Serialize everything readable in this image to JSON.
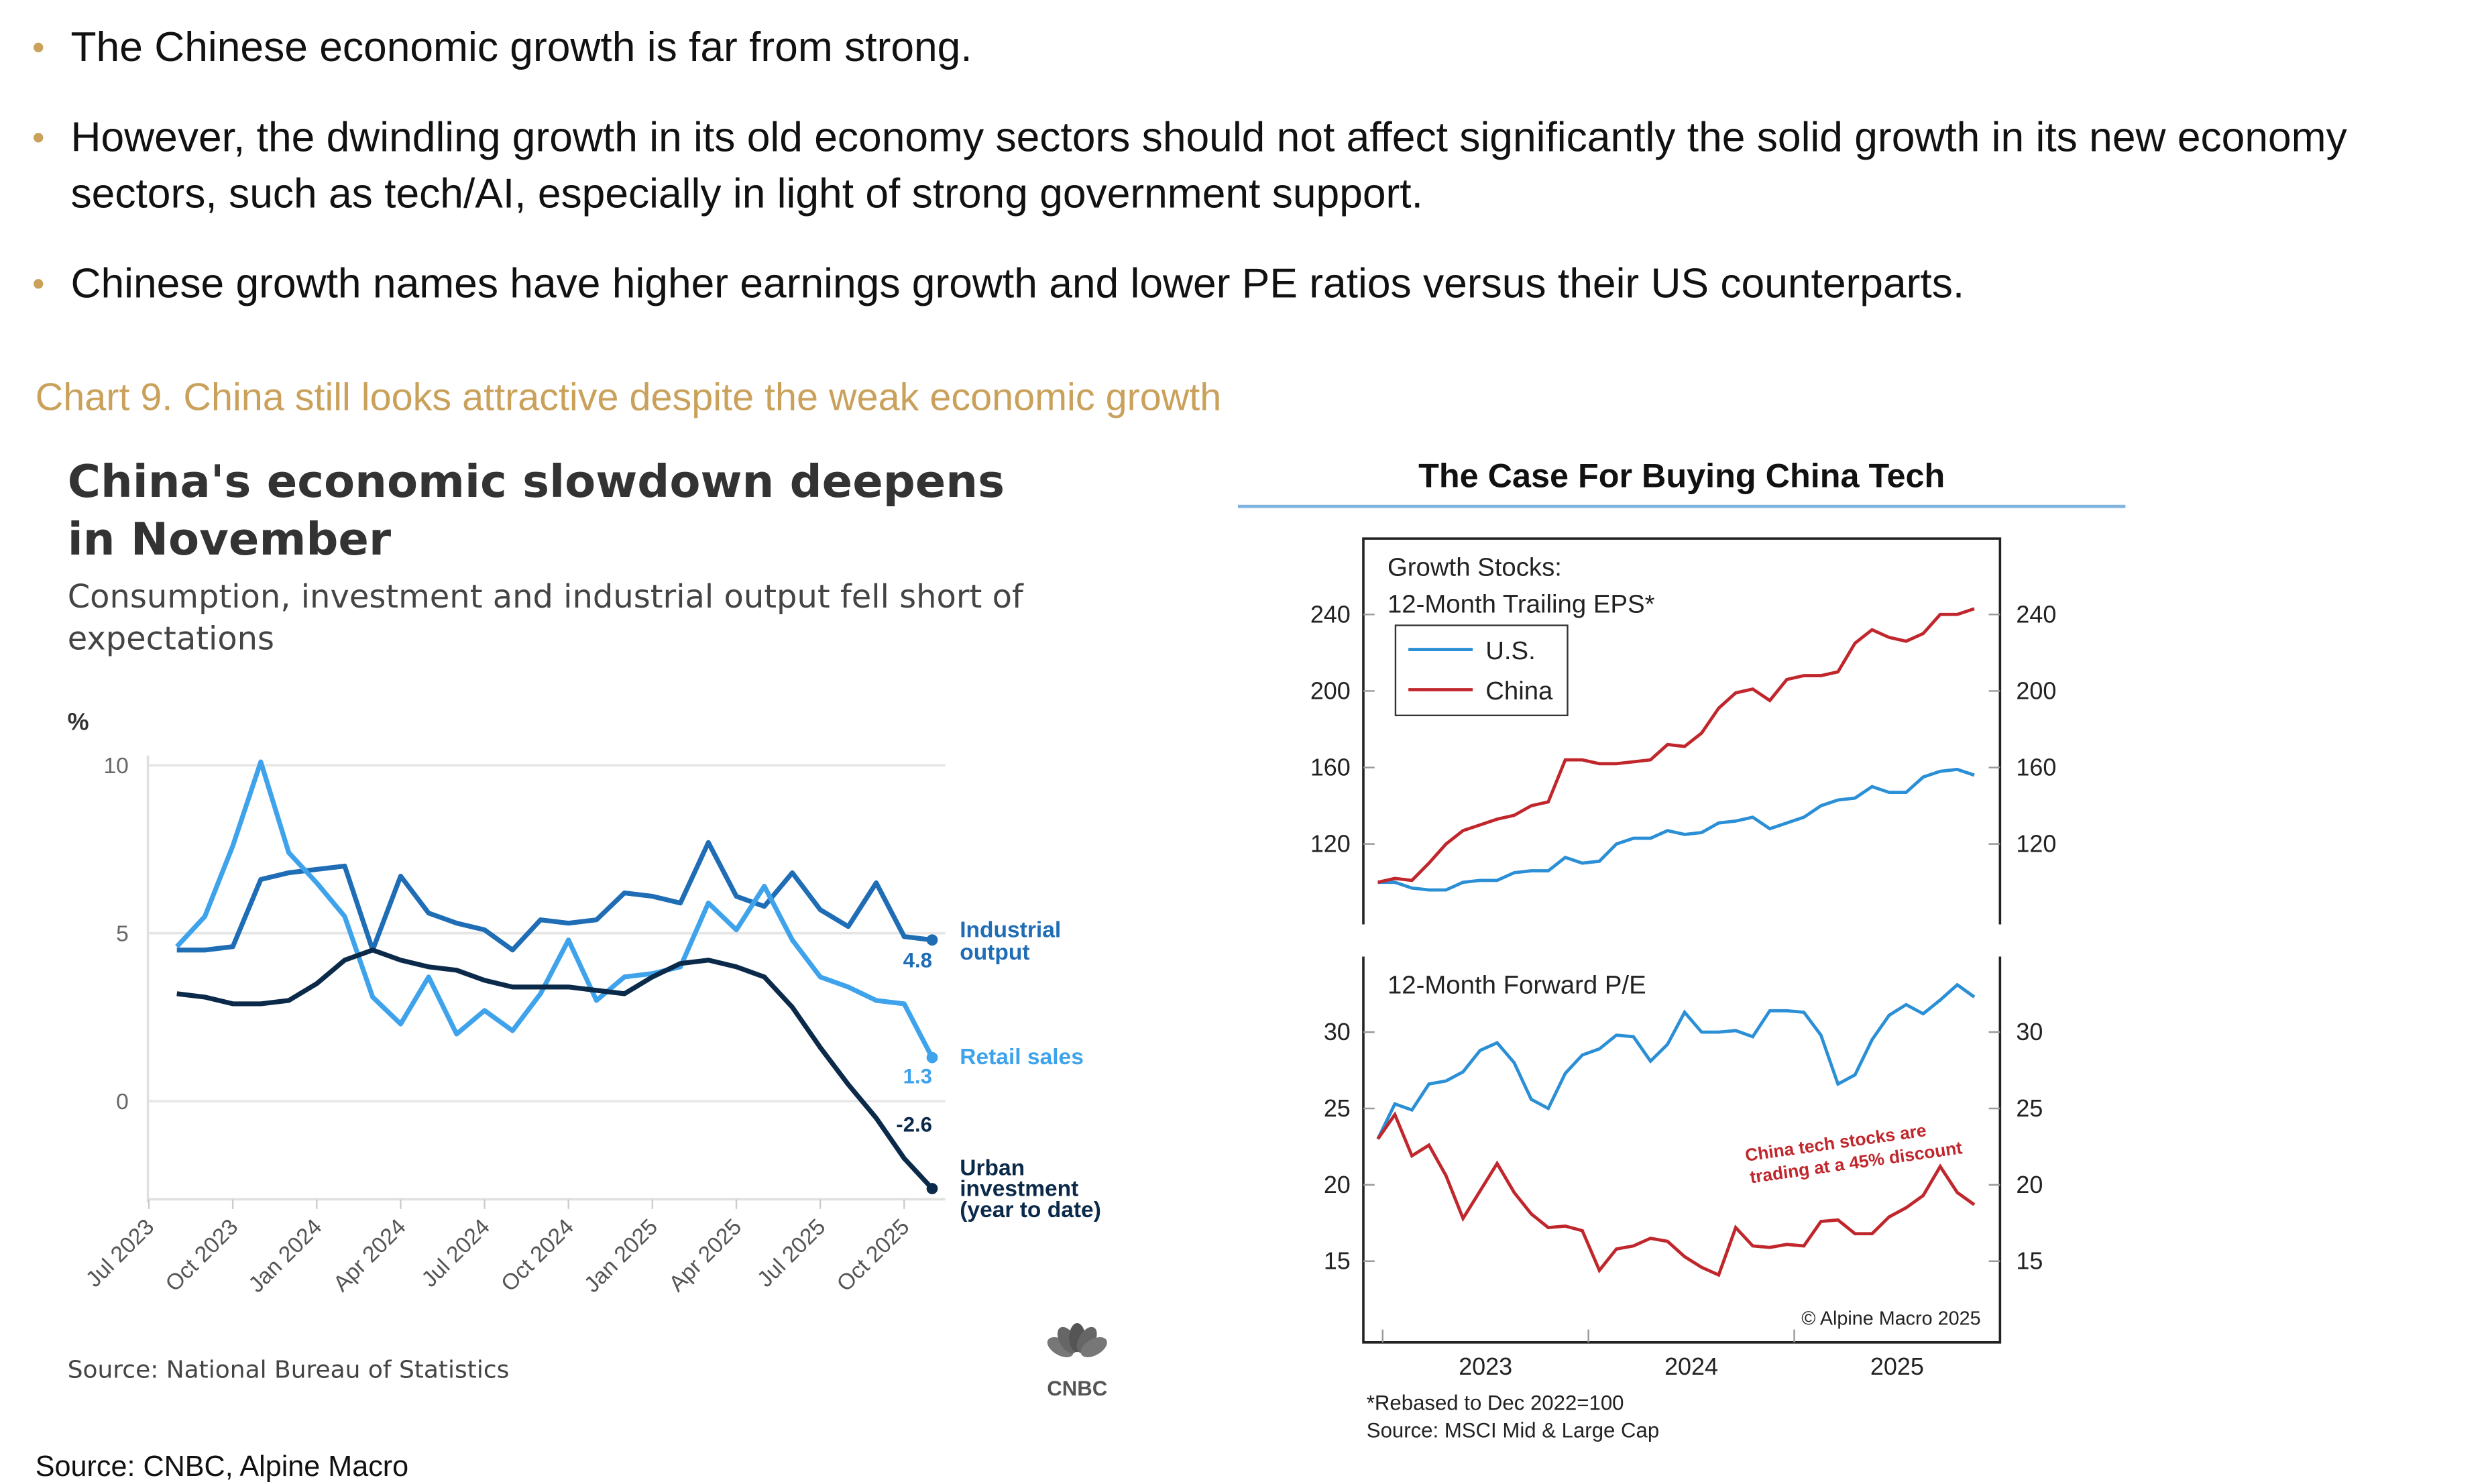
{
  "bullets": [
    "The Chinese economic growth is far from strong.",
    "However, the dwindling growth in its old economy sectors should not affect significantly the solid growth in its new economy sectors, such as tech/AI, especially in light of strong government support.",
    "Chinese growth names have higher earnings growth and lower PE ratios versus their US counterparts."
  ],
  "chart_caption": "Chart 9. China still looks attractive despite the weak economic growth",
  "global_source": "Source: CNBC, Alpine Macro",
  "colors": {
    "accent_gold": "#c9a15a",
    "industrial": "#1f6db5",
    "retail": "#3fa3ec",
    "urban": "#0b2a4a",
    "us": "#2b8fd6",
    "china": "#c0272d"
  },
  "chart_data": [
    {
      "type": "line",
      "title": "China's economic slowdown deepens in November",
      "subtitle": "Consumption, investment and industrial output fell short of expectations",
      "ylabel": "%",
      "source": "Source: National Bureau of Statistics",
      "logo": "CNBC",
      "ylim": [
        -3,
        10
      ],
      "yticks": [
        "10",
        "5",
        "0"
      ],
      "xticks": [
        "Jul 2023",
        "Oct 2023",
        "Jan 2024",
        "Apr 2024",
        "Jul 2024",
        "Oct 2024",
        "Jan 2025",
        "Apr 2025",
        "Jul 2025",
        "Oct 2025"
      ],
      "x_start": "Aug 2023",
      "x_end": "Nov 2025",
      "grid": true,
      "series": [
        {
          "name": "Industrial output",
          "end_label": "4.8",
          "values": [
            4.5,
            4.5,
            4.6,
            6.6,
            6.8,
            6.9,
            7.0,
            4.5,
            6.7,
            5.6,
            5.3,
            5.1,
            4.5,
            5.4,
            5.3,
            5.4,
            6.2,
            6.1,
            5.9,
            7.7,
            6.1,
            5.8,
            6.8,
            5.7,
            5.2,
            6.5,
            4.9,
            4.8
          ]
        },
        {
          "name": "Retail sales",
          "end_label": "1.3",
          "values": [
            4.6,
            5.5,
            7.6,
            10.1,
            7.4,
            6.5,
            5.5,
            3.1,
            2.3,
            3.7,
            2.0,
            2.7,
            2.1,
            3.2,
            4.8,
            3.0,
            3.7,
            3.8,
            4.0,
            5.9,
            5.1,
            6.4,
            4.8,
            3.7,
            3.4,
            3.0,
            2.9,
            1.3
          ]
        },
        {
          "name": "Urban investment (year to date)",
          "end_label": "-2.6",
          "values": [
            3.2,
            3.1,
            2.9,
            2.9,
            3.0,
            3.5,
            4.2,
            4.5,
            4.2,
            4.0,
            3.9,
            3.6,
            3.4,
            3.4,
            3.4,
            3.3,
            3.2,
            3.7,
            4.1,
            4.2,
            4.0,
            3.7,
            2.8,
            1.6,
            0.5,
            -0.5,
            -1.7,
            -2.6
          ]
        }
      ]
    },
    {
      "type": "line",
      "title": "The Case For Buying China Tech",
      "x_start": "Dec 2022",
      "x_end": "Nov 2025",
      "xticks": [
        "2023",
        "2024",
        "2025"
      ],
      "footnote": "*Rebased to Dec 2022=100",
      "source": "Source: MSCI Mid & Large Cap",
      "copyright": "© Alpine Macro 2025",
      "panels": [
        {
          "title_lines": [
            "Growth Stocks:",
            "12-Month Trailing EPS*"
          ],
          "ylim": [
            90,
            260
          ],
          "yticks": [
            "240",
            "200",
            "160",
            "120"
          ],
          "legend": "top-left",
          "series": [
            {
              "name": "U.S.",
              "values": [
                100,
                100,
                97,
                96,
                96,
                100,
                101,
                101,
                105,
                106,
                106,
                113,
                110,
                111,
                120,
                123,
                123,
                127,
                125,
                126,
                131,
                132,
                134,
                128,
                131,
                134,
                140,
                143,
                144,
                150,
                147,
                147,
                155,
                158,
                159,
                156
              ]
            },
            {
              "name": "China",
              "values": [
                100,
                102,
                101,
                110,
                120,
                127,
                130,
                133,
                135,
                140,
                142,
                164,
                164,
                162,
                162,
                163,
                164,
                172,
                171,
                178,
                191,
                199,
                201,
                195,
                206,
                208,
                208,
                210,
                225,
                232,
                228,
                226,
                230,
                240,
                240,
                243
              ]
            }
          ]
        },
        {
          "title_lines": [
            "12-Month Forward P/E"
          ],
          "ylim": [
            10,
            35
          ],
          "yticks": [
            "30",
            "25",
            "20",
            "15"
          ],
          "annotation": [
            "China tech stocks are",
            "trading at a 45% discount"
          ],
          "series": [
            {
              "name": "U.S.",
              "values": [
                23,
                25.3,
                24.9,
                26.6,
                26.8,
                27.4,
                28.8,
                29.3,
                28,
                25.6,
                25,
                27.3,
                28.5,
                28.9,
                29.8,
                29.7,
                28.1,
                29.2,
                31.3,
                30,
                30,
                30.1,
                29.7,
                31.4,
                31.4,
                31.3,
                29.8,
                26.6,
                27.2,
                29.5,
                31.1,
                31.8,
                31.2,
                32.1,
                33.1,
                32.3
              ]
            },
            {
              "name": "China",
              "values": [
                23,
                24.6,
                21.9,
                22.6,
                20.6,
                17.8,
                19.6,
                21.4,
                19.5,
                18.1,
                17.2,
                17.3,
                17,
                14.4,
                15.8,
                16,
                16.5,
                16.3,
                15.3,
                14.6,
                14.1,
                17.2,
                16,
                15.9,
                16.1,
                16,
                17.6,
                17.7,
                16.8,
                16.8,
                17.9,
                18.5,
                19.3,
                21.2,
                19.5,
                18.7
              ]
            }
          ]
        }
      ]
    }
  ]
}
